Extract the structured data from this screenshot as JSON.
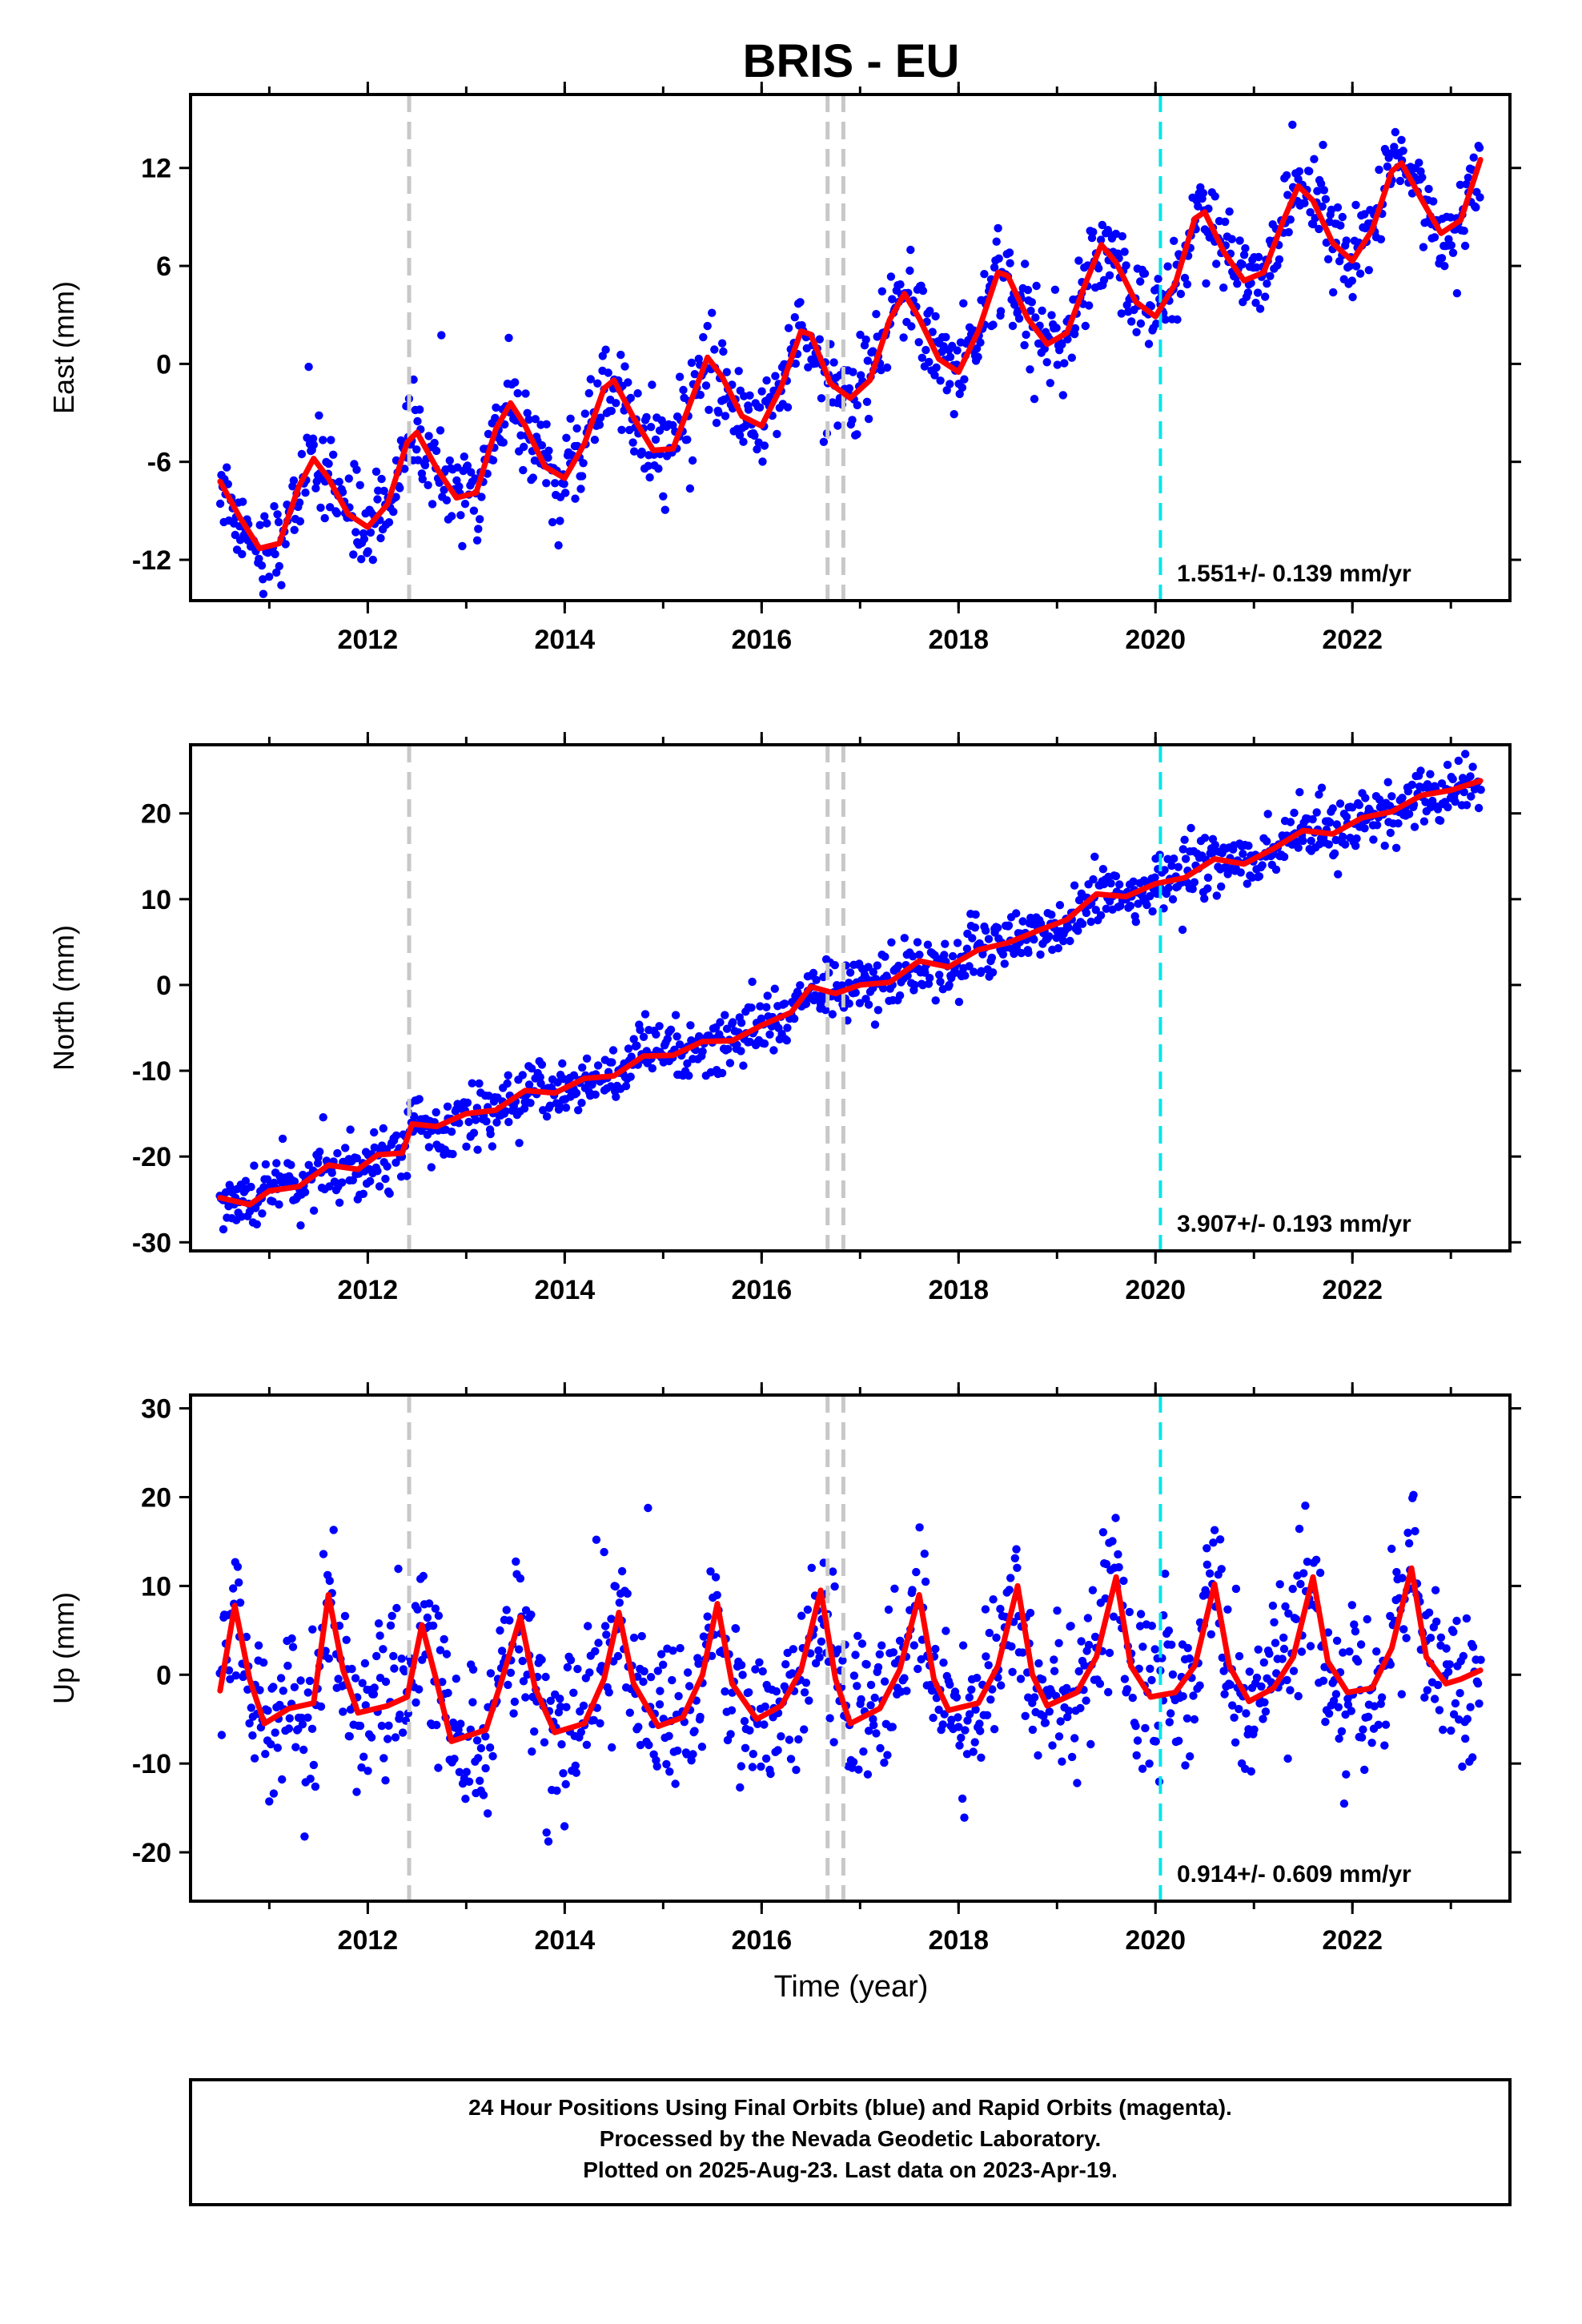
{
  "title": "BRIS - EU",
  "xlabel": "Time (year)",
  "footer": {
    "line1": "24 Hour Positions Using Final Orbits (blue) and Rapid Orbits (magenta).",
    "line2": "Processed by the Nevada Geodetic Laboratory.",
    "line3": "Plotted on 2025-Aug-23. Last data on 2023-Apr-19."
  },
  "colors": {
    "data": "#0000ff",
    "model": "#ff0000",
    "offset_line": "#c8c8c8",
    "event_line": "#00e5ee"
  },
  "chart_data": [
    {
      "type": "scatter",
      "panel": "east",
      "ylabel": "East (mm)",
      "xlim": [
        2010.2,
        2023.6
      ],
      "ylim": [
        -14.5,
        16.5
      ],
      "xticks": [
        "2012",
        "2014",
        "2016",
        "2018",
        "2020",
        "2022"
      ],
      "yticks": [
        "12",
        "6",
        "0",
        "-6",
        "-12"
      ],
      "rate_text": "1.551+/- 0.139 mm/yr",
      "vertical_lines": {
        "offset_years": [
          2012.42,
          2016.67,
          2016.83
        ],
        "event_years": [
          2020.05
        ]
      },
      "series": [
        {
          "name": "",
          "model_points": [
            [
              2010.5,
              -7.2
            ],
            [
              2010.7,
              -9.4
            ],
            [
              2010.9,
              -11.3
            ],
            [
              2011.1,
              -11.0
            ],
            [
              2011.3,
              -7.5
            ],
            [
              2011.45,
              -5.8
            ],
            [
              2011.6,
              -7.0
            ],
            [
              2011.8,
              -9.2
            ],
            [
              2012.0,
              -10.0
            ],
            [
              2012.2,
              -8.6
            ],
            [
              2012.4,
              -4.8
            ],
            [
              2012.5,
              -4.2
            ],
            [
              2012.7,
              -6.4
            ],
            [
              2012.9,
              -8.2
            ],
            [
              2013.1,
              -7.9
            ],
            [
              2013.3,
              -4.0
            ],
            [
              2013.45,
              -2.4
            ],
            [
              2013.6,
              -3.8
            ],
            [
              2013.8,
              -6.3
            ],
            [
              2014.0,
              -7.0
            ],
            [
              2014.2,
              -4.9
            ],
            [
              2014.4,
              -1.5
            ],
            [
              2014.5,
              -1.0
            ],
            [
              2014.7,
              -3.3
            ],
            [
              2014.9,
              -5.3
            ],
            [
              2015.1,
              -5.2
            ],
            [
              2015.3,
              -2.0
            ],
            [
              2015.45,
              0.4
            ],
            [
              2015.6,
              -0.8
            ],
            [
              2015.8,
              -3.2
            ],
            [
              2016.0,
              -3.8
            ],
            [
              2016.2,
              -1.4
            ],
            [
              2016.4,
              2.0
            ],
            [
              2016.5,
              1.8
            ],
            [
              2016.7,
              -1.2
            ],
            [
              2016.9,
              -2.1
            ],
            [
              2017.1,
              -1.0
            ],
            [
              2017.3,
              2.7
            ],
            [
              2017.45,
              4.3
            ],
            [
              2017.6,
              2.8
            ],
            [
              2017.8,
              0.3
            ],
            [
              2018.0,
              -0.5
            ],
            [
              2018.2,
              2.0
            ],
            [
              2018.4,
              5.6
            ],
            [
              2018.5,
              5.4
            ],
            [
              2018.7,
              2.8
            ],
            [
              2018.9,
              1.2
            ],
            [
              2019.1,
              1.9
            ],
            [
              2019.3,
              5.1
            ],
            [
              2019.45,
              7.3
            ],
            [
              2019.6,
              6.2
            ],
            [
              2019.8,
              3.8
            ],
            [
              2020.0,
              2.9
            ],
            [
              2020.2,
              4.9
            ],
            [
              2020.4,
              8.9
            ],
            [
              2020.5,
              9.3
            ],
            [
              2020.7,
              6.8
            ],
            [
              2020.9,
              5.1
            ],
            [
              2021.1,
              5.6
            ],
            [
              2021.3,
              8.8
            ],
            [
              2021.45,
              10.9
            ],
            [
              2021.6,
              10.0
            ],
            [
              2021.8,
              7.4
            ],
            [
              2022.0,
              6.3
            ],
            [
              2022.2,
              8.2
            ],
            [
              2022.4,
              11.8
            ],
            [
              2022.5,
              12.3
            ],
            [
              2022.7,
              10.1
            ],
            [
              2022.9,
              8.0
            ],
            [
              2023.1,
              8.8
            ],
            [
              2023.3,
              12.5
            ]
          ],
          "scatter_spread": 1.3
        }
      ]
    },
    {
      "type": "scatter",
      "panel": "north",
      "ylabel": "North (mm)",
      "xlim": [
        2010.2,
        2023.6
      ],
      "ylim": [
        -31,
        28
      ],
      "xticks": [
        "2012",
        "2014",
        "2016",
        "2018",
        "2020",
        "2022"
      ],
      "yticks": [
        "20",
        "10",
        "0",
        "-10",
        "-20",
        "-30"
      ],
      "rate_text": "3.907+/- 0.193 mm/yr",
      "vertical_lines": {
        "offset_years": [
          2012.42,
          2016.67,
          2016.83
        ],
        "event_years": [
          2020.05
        ]
      },
      "series": [
        {
          "name": "",
          "model_points": [
            [
              2010.5,
              -24.8
            ],
            [
              2010.8,
              -25.6
            ],
            [
              2011.0,
              -24.0
            ],
            [
              2011.3,
              -23.5
            ],
            [
              2011.6,
              -21.0
            ],
            [
              2011.9,
              -21.5
            ],
            [
              2012.1,
              -19.8
            ],
            [
              2012.35,
              -19.6
            ],
            [
              2012.45,
              -16.2
            ],
            [
              2012.7,
              -16.5
            ],
            [
              2013.0,
              -15.0
            ],
            [
              2013.3,
              -14.6
            ],
            [
              2013.6,
              -12.3
            ],
            [
              2013.9,
              -12.6
            ],
            [
              2014.2,
              -10.9
            ],
            [
              2014.5,
              -10.6
            ],
            [
              2014.8,
              -8.3
            ],
            [
              2015.1,
              -8.2
            ],
            [
              2015.4,
              -6.6
            ],
            [
              2015.7,
              -6.5
            ],
            [
              2016.0,
              -4.7
            ],
            [
              2016.3,
              -3.2
            ],
            [
              2016.5,
              -0.2
            ],
            [
              2016.75,
              -1.0
            ],
            [
              2017.0,
              0.0
            ],
            [
              2017.3,
              0.3
            ],
            [
              2017.6,
              2.8
            ],
            [
              2017.9,
              2.1
            ],
            [
              2018.2,
              4.1
            ],
            [
              2018.5,
              4.9
            ],
            [
              2018.8,
              6.3
            ],
            [
              2019.1,
              7.6
            ],
            [
              2019.4,
              10.6
            ],
            [
              2019.7,
              10.3
            ],
            [
              2020.0,
              11.8
            ],
            [
              2020.3,
              12.5
            ],
            [
              2020.6,
              14.7
            ],
            [
              2020.9,
              14.1
            ],
            [
              2021.2,
              15.9
            ],
            [
              2021.5,
              18.0
            ],
            [
              2021.8,
              17.6
            ],
            [
              2022.1,
              19.5
            ],
            [
              2022.4,
              20.2
            ],
            [
              2022.7,
              22.1
            ],
            [
              2023.0,
              22.7
            ],
            [
              2023.3,
              23.8
            ]
          ],
          "scatter_spread": 1.8
        }
      ]
    },
    {
      "type": "scatter",
      "panel": "up",
      "ylabel": "Up (mm)",
      "xlim": [
        2010.2,
        2023.6
      ],
      "ylim": [
        -25.5,
        31.5
      ],
      "xticks": [
        "2012",
        "2014",
        "2016",
        "2018",
        "2020",
        "2022"
      ],
      "yticks": [
        "30",
        "20",
        "10",
        "0",
        "-10",
        "-20"
      ],
      "rate_text": "0.914+/- 0.609 mm/yr",
      "vertical_lines": {
        "offset_years": [
          2012.42,
          2016.67,
          2016.83
        ],
        "event_years": [
          2020.05
        ]
      },
      "series": [
        {
          "name": "",
          "model_points": [
            [
              2010.5,
              -1.8
            ],
            [
              2010.65,
              7.8
            ],
            [
              2010.8,
              -0.5
            ],
            [
              2010.95,
              -5.5
            ],
            [
              2011.2,
              -3.8
            ],
            [
              2011.45,
              -3.2
            ],
            [
              2011.6,
              9.0
            ],
            [
              2011.75,
              0.5
            ],
            [
              2011.9,
              -4.3
            ],
            [
              2012.2,
              -3.5
            ],
            [
              2012.4,
              -2.5
            ],
            [
              2012.55,
              5.6
            ],
            [
              2012.7,
              -0.8
            ],
            [
              2012.85,
              -7.5
            ],
            [
              2013.2,
              -6.2
            ],
            [
              2013.35,
              -1.0
            ],
            [
              2013.55,
              6.5
            ],
            [
              2013.7,
              -1.5
            ],
            [
              2013.9,
              -6.5
            ],
            [
              2014.2,
              -5.5
            ],
            [
              2014.4,
              -0.5
            ],
            [
              2014.55,
              7.0
            ],
            [
              2014.7,
              -1.0
            ],
            [
              2014.95,
              -5.8
            ],
            [
              2015.2,
              -4.8
            ],
            [
              2015.4,
              0.0
            ],
            [
              2015.55,
              8.0
            ],
            [
              2015.7,
              -1.0
            ],
            [
              2015.95,
              -5.0
            ],
            [
              2016.2,
              -3.5
            ],
            [
              2016.4,
              0.5
            ],
            [
              2016.6,
              9.5
            ],
            [
              2016.75,
              -0.5
            ],
            [
              2016.9,
              -5.5
            ],
            [
              2017.2,
              -3.8
            ],
            [
              2017.4,
              0.5
            ],
            [
              2017.6,
              9.0
            ],
            [
              2017.75,
              -0.5
            ],
            [
              2017.9,
              -4.0
            ],
            [
              2018.2,
              -3.2
            ],
            [
              2018.4,
              1.0
            ],
            [
              2018.6,
              10.0
            ],
            [
              2018.75,
              0.0
            ],
            [
              2018.9,
              -3.5
            ],
            [
              2019.2,
              -2.0
            ],
            [
              2019.4,
              2.0
            ],
            [
              2019.6,
              11.0
            ],
            [
              2019.75,
              1.0
            ],
            [
              2019.95,
              -2.5
            ],
            [
              2020.2,
              -2.0
            ],
            [
              2020.4,
              1.0
            ],
            [
              2020.6,
              10.2
            ],
            [
              2020.75,
              1.0
            ],
            [
              2020.95,
              -3.0
            ],
            [
              2021.2,
              -1.5
            ],
            [
              2021.4,
              2.0
            ],
            [
              2021.6,
              11.0
            ],
            [
              2021.75,
              1.5
            ],
            [
              2021.95,
              -2.0
            ],
            [
              2022.2,
              -1.5
            ],
            [
              2022.4,
              3.0
            ],
            [
              2022.6,
              12.0
            ],
            [
              2022.75,
              2.0
            ],
            [
              2022.95,
              -1.0
            ],
            [
              2023.1,
              -0.5
            ],
            [
              2023.3,
              0.5
            ]
          ],
          "scatter_spread": 4.5
        }
      ]
    }
  ]
}
